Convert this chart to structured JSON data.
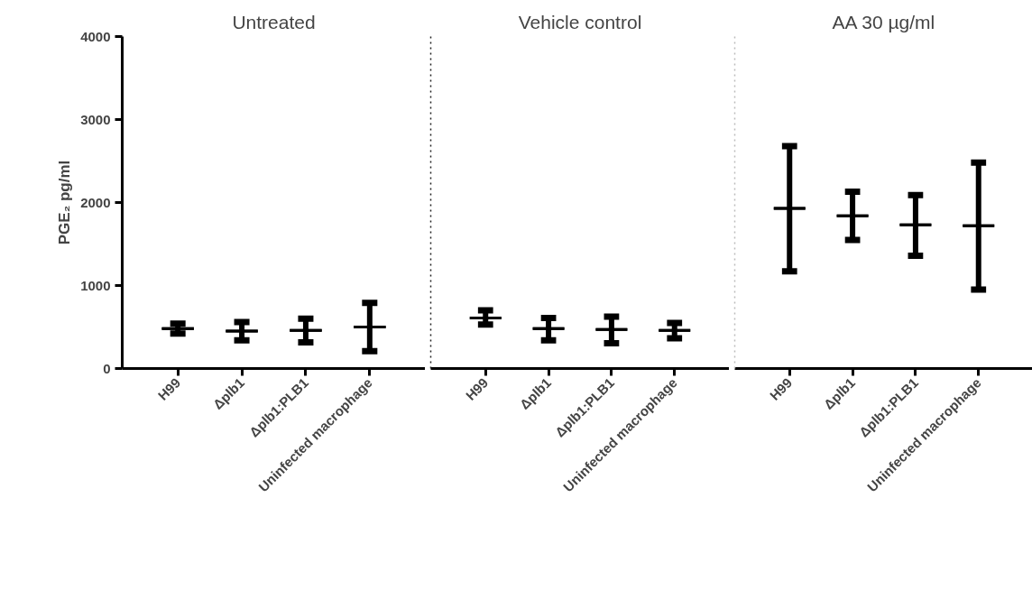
{
  "chart_data": [
    {
      "type": "box",
      "title": "Untreated",
      "ylabel": "PGE₂ pg/ml",
      "categories": [
        "H99",
        "Δplb1",
        "Δplb1:PLB1",
        "Uninfected macrophage"
      ],
      "ylim": [
        0,
        4000
      ],
      "yticks": [
        0,
        1000,
        2000,
        3000,
        4000
      ],
      "grid": false,
      "boxes": [
        {
          "low": 420,
          "q1": 480,
          "median": 480,
          "q3": 480,
          "high": 540
        },
        {
          "low": 340,
          "q1": 450,
          "median": 450,
          "q3": 450,
          "high": 560
        },
        {
          "low": 315,
          "q1": 460,
          "median": 460,
          "q3": 460,
          "high": 600
        },
        {
          "low": 210,
          "q1": 500,
          "median": 500,
          "q3": 500,
          "high": 790
        }
      ]
    },
    {
      "type": "box",
      "title": "Vehicle control",
      "categories": [
        "H99",
        "Δplb1",
        "Δplb1:PLB1",
        "Uninfected macrophage"
      ],
      "ylim": [
        0,
        4000
      ],
      "yticks": [
        0,
        1000,
        2000,
        3000,
        4000
      ],
      "grid": false,
      "tick_labels": "x",
      "boxes": [
        {
          "low": 530,
          "q1": 610,
          "median": 610,
          "q3": 610,
          "high": 700
        },
        {
          "low": 340,
          "q1": 480,
          "median": 480,
          "q3": 480,
          "high": 610
        },
        {
          "low": 305,
          "q1": 470,
          "median": 470,
          "q3": 470,
          "high": 625
        },
        {
          "low": 365,
          "q1": 460,
          "median": 460,
          "q3": 460,
          "high": 550
        }
      ]
    },
    {
      "type": "box",
      "title": "AA 30 µg/ml",
      "categories": [
        "H99",
        "Δplb1",
        "Δplb1:PLB1",
        "Uninfected macrophage"
      ],
      "ylim": [
        0,
        4000
      ],
      "yticks": [
        0,
        1000,
        2000,
        3000,
        4000
      ],
      "grid": false,
      "tick_labels": "x",
      "boxes": [
        {
          "low": 1170,
          "q1": 1930,
          "median": 1930,
          "q3": 1930,
          "high": 2680
        },
        {
          "low": 1550,
          "q1": 1840,
          "median": 1840,
          "q3": 1840,
          "high": 2130
        },
        {
          "low": 1360,
          "q1": 1730,
          "median": 1730,
          "q3": 1730,
          "high": 2090
        },
        {
          "low": 950,
          "q1": 1720,
          "median": 1720,
          "q3": 1720,
          "high": 2480
        }
      ]
    }
  ]
}
